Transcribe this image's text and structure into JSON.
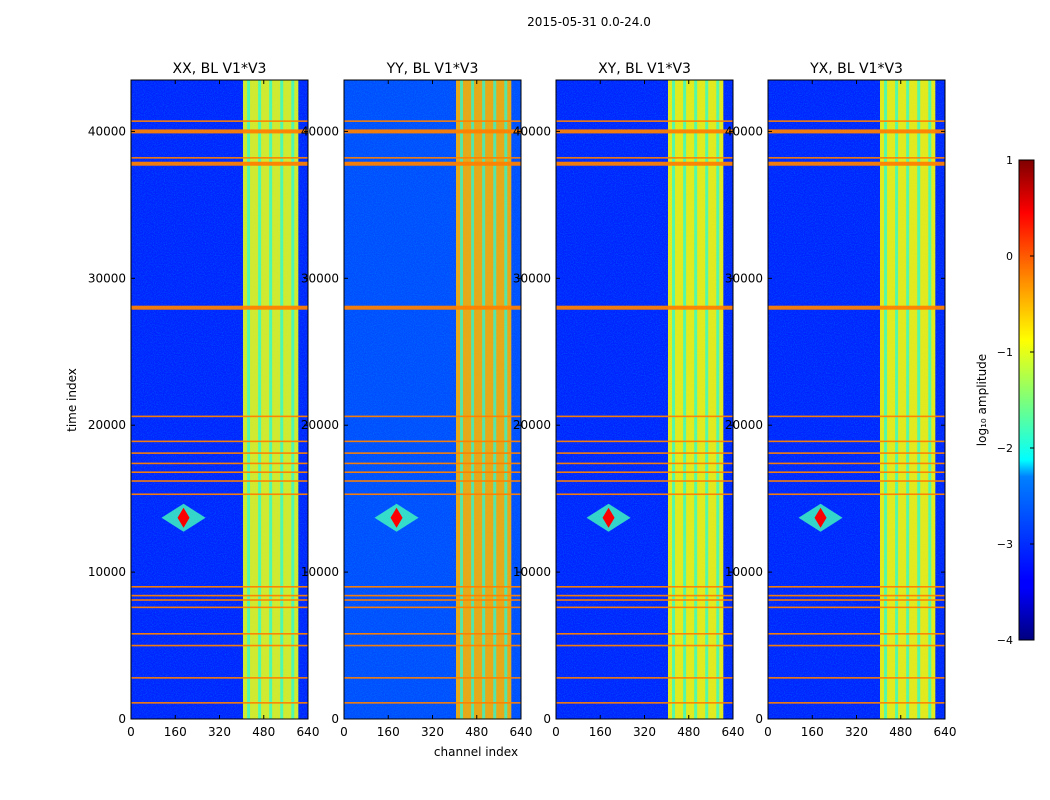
{
  "figure": {
    "suptitle": "2015-05-31 0.0-24.0",
    "xlabel": "channel index",
    "ylabel": "time index"
  },
  "colorbar": {
    "label": "log₁₀ amplitude",
    "ticks": [
      1,
      0,
      -1,
      -2,
      -3,
      -4
    ],
    "tick_labels": [
      "1",
      "0",
      "−1",
      "−2",
      "−3",
      "−4"
    ],
    "range": [
      -4,
      1
    ],
    "colormap": "jet"
  },
  "chart_data": [
    {
      "type": "heatmap",
      "title": "XX, BL V1*V3",
      "xlim": [
        0,
        640
      ],
      "ylim": [
        0,
        43500
      ],
      "xticks": [
        0,
        160,
        320,
        480,
        640
      ],
      "yticks": [
        0,
        10000,
        20000,
        30000,
        40000
      ],
      "background_log_amp": -3.2,
      "rfi_band_channels": [
        405,
        605
      ],
      "rfi_band_log_amp": -1.0,
      "hot_spot": {
        "channel": 190,
        "time": 13700,
        "log_amp": 0.4
      },
      "flag_rows_time": [
        1100,
        2800,
        5000,
        5800,
        7600,
        8100,
        8400,
        9000,
        15300,
        16200,
        16800,
        17400,
        18100,
        18900,
        20600,
        28000,
        37800,
        38200,
        40000,
        40700
      ]
    },
    {
      "type": "heatmap",
      "title": "YY, BL V1*V3",
      "xlim": [
        0,
        640
      ],
      "ylim": [
        0,
        43500
      ],
      "xticks": [
        0,
        160,
        320,
        480,
        640
      ],
      "yticks": [
        0,
        10000,
        20000,
        30000,
        40000
      ],
      "background_log_amp": -3.0,
      "rfi_band_channels": [
        405,
        605
      ],
      "rfi_band_log_amp": -0.5,
      "hot_spot": {
        "channel": 190,
        "time": 13700,
        "log_amp": 0.4
      },
      "flag_rows_time": [
        1100,
        2800,
        5000,
        5800,
        7600,
        8100,
        8400,
        9000,
        15300,
        16200,
        16800,
        17400,
        18100,
        18900,
        20600,
        28000,
        37800,
        38200,
        40000,
        40700
      ]
    },
    {
      "type": "heatmap",
      "title": "XY, BL V1*V3",
      "xlim": [
        0,
        640
      ],
      "ylim": [
        0,
        43500
      ],
      "xticks": [
        0,
        160,
        320,
        480,
        640
      ],
      "yticks": [
        0,
        10000,
        20000,
        30000,
        40000
      ],
      "background_log_amp": -3.2,
      "rfi_band_channels": [
        405,
        605
      ],
      "rfi_band_log_amp": -0.9,
      "hot_spot": {
        "channel": 190,
        "time": 13700,
        "log_amp": 0.4
      },
      "flag_rows_time": [
        1100,
        2800,
        5000,
        5800,
        7600,
        8100,
        8400,
        9000,
        15300,
        16200,
        16800,
        17400,
        18100,
        18900,
        20600,
        28000,
        37800,
        38200,
        40000,
        40700
      ]
    },
    {
      "type": "heatmap",
      "title": "YX, BL V1*V3",
      "xlim": [
        0,
        640
      ],
      "ylim": [
        0,
        43500
      ],
      "xticks": [
        0,
        160,
        320,
        480,
        640
      ],
      "yticks": [
        0,
        10000,
        20000,
        30000,
        40000
      ],
      "background_log_amp": -3.2,
      "rfi_band_channels": [
        405,
        605
      ],
      "rfi_band_log_amp": -0.9,
      "hot_spot": {
        "channel": 190,
        "time": 13700,
        "log_amp": 0.4
      },
      "flag_rows_time": [
        1100,
        2800,
        5000,
        5800,
        7600,
        8100,
        8400,
        9000,
        15300,
        16200,
        16800,
        17400,
        18100,
        18900,
        20600,
        28000,
        37800,
        38200,
        40000,
        40700
      ]
    }
  ]
}
